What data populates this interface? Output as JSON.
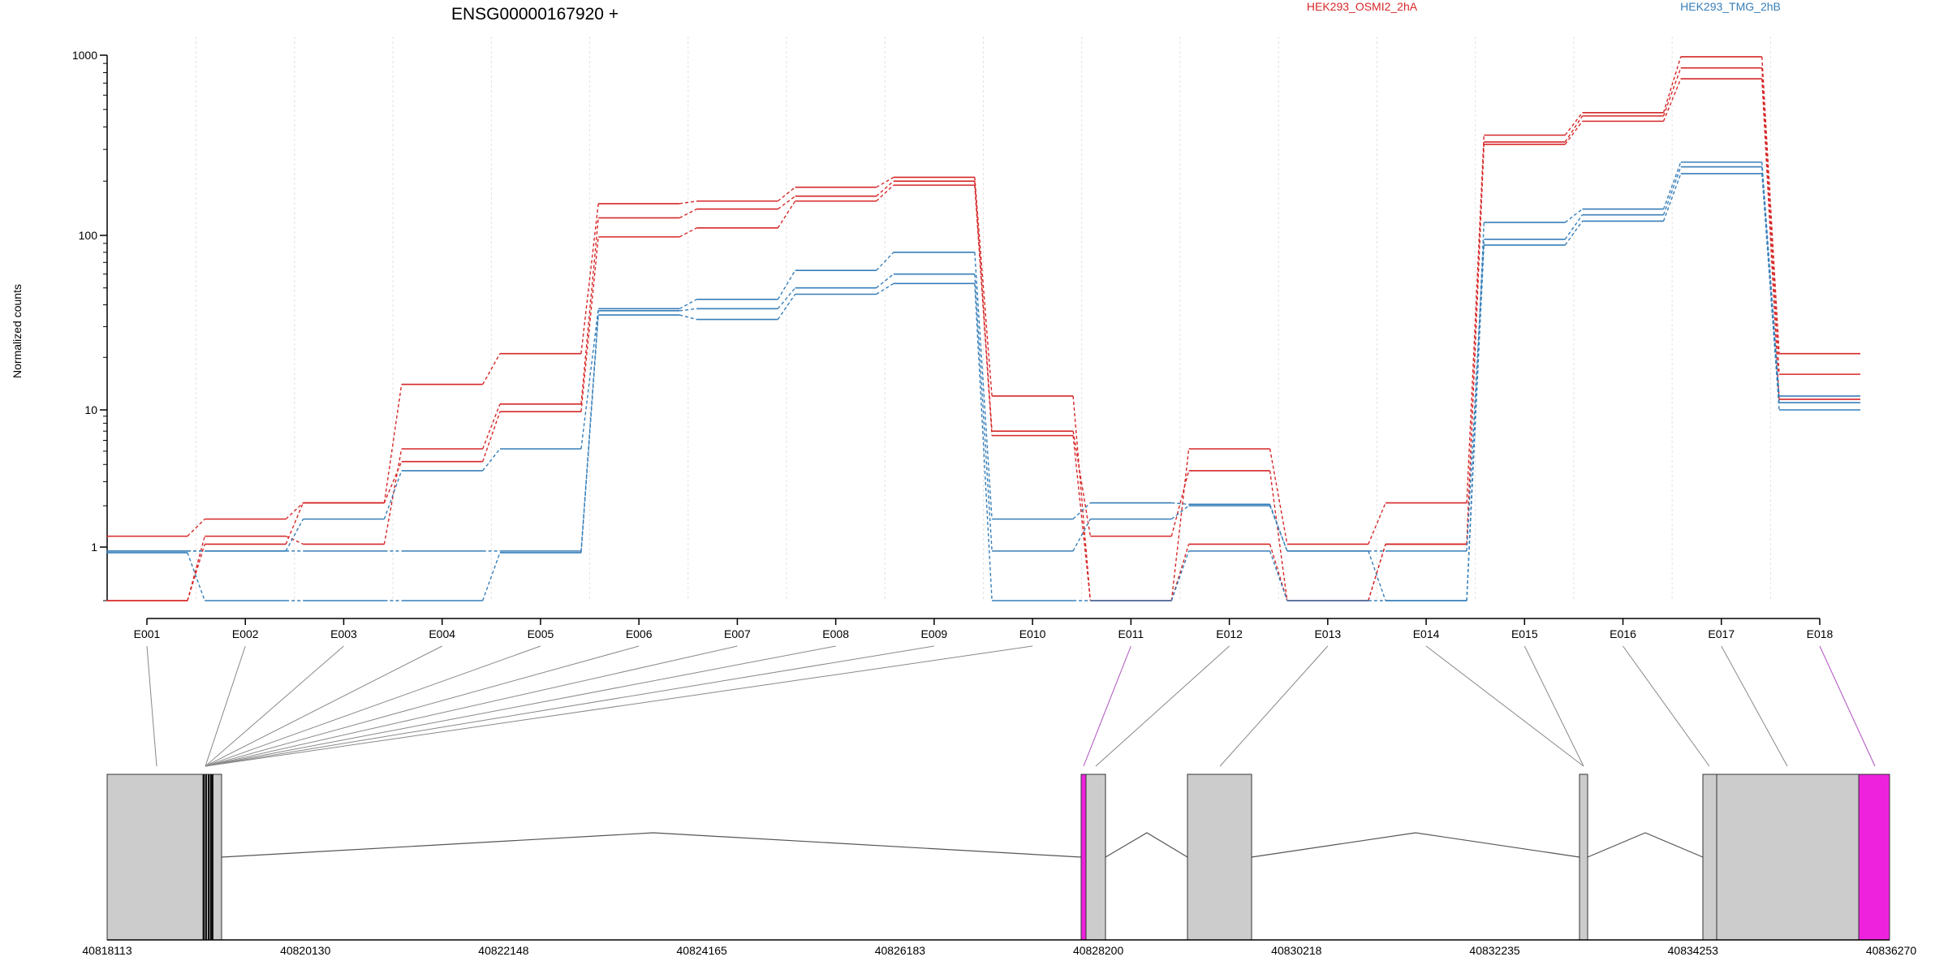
{
  "chart_data": {
    "type": "line",
    "title": "ENSG00000167920 +",
    "ylabel": "Normalized counts",
    "y_scale": "log",
    "ylim": [
      0.5,
      1000
    ],
    "y_ticks": [
      1,
      10,
      100,
      1000
    ],
    "y_tick_labels": [
      "1",
      "10",
      "100",
      "1000"
    ],
    "grid": "vertical dotted lines at exon boundaries",
    "categories": [
      "E001",
      "E002",
      "E003",
      "E004",
      "E005",
      "E006",
      "E007",
      "E008",
      "E009",
      "E010",
      "E011",
      "E012",
      "E013",
      "E014",
      "E015",
      "E016",
      "E017",
      "E018"
    ],
    "legend": [
      {
        "label": "HEK293_OSMI2_2hA",
        "color": "#d62728"
      },
      {
        "label": "HEK293_TMG_2hB",
        "color": "#377eb8"
      }
    ],
    "series": [
      {
        "group": "HEK293_OSMI2_2hA",
        "color": "#d62728",
        "values": [
          1.2,
          1.6,
          2.1,
          14,
          21,
          150,
          155,
          185,
          210,
          12,
          0.5,
          5.2,
          1.05,
          2.1,
          360,
          480,
          980,
          21
        ]
      },
      {
        "group": "HEK293_OSMI2_2hA",
        "color": "#d62728",
        "values": [
          0.5,
          1.2,
          1.05,
          5.2,
          10.8,
          125,
          140,
          165,
          200,
          7,
          1.2,
          3.6,
          0.5,
          1.05,
          330,
          460,
          850,
          16
        ]
      },
      {
        "group": "HEK293_OSMI2_2hA",
        "color": "#d62728",
        "values": [
          0.5,
          1.05,
          2.1,
          4.2,
          9.7,
          98,
          110,
          155,
          190,
          6.5,
          0.5,
          1.05,
          0.5,
          1.05,
          320,
          430,
          740,
          11.5
        ]
      },
      {
        "group": "HEK293_TMG_2hB",
        "color": "#377eb8",
        "values": [
          0.95,
          0.95,
          1.6,
          3.6,
          5.2,
          38,
          43,
          63,
          80,
          1.6,
          2.1,
          2.05,
          0.95,
          0.5,
          118,
          140,
          255,
          12
        ]
      },
      {
        "group": "HEK293_TMG_2hB",
        "color": "#377eb8",
        "values": [
          0.95,
          0.95,
          0.95,
          0.95,
          0.95,
          37,
          38,
          50,
          60,
          0.95,
          1.6,
          2.0,
          0.95,
          0.95,
          95,
          130,
          240,
          11
        ]
      },
      {
        "group": "HEK293_TMG_2hB",
        "color": "#377eb8",
        "values": [
          0.93,
          0.5,
          0.5,
          0.5,
          0.93,
          35,
          33,
          46,
          53,
          0.5,
          0.5,
          0.95,
          0.5,
          0.5,
          88,
          120,
          220,
          10
        ]
      }
    ],
    "gene_model": {
      "genomic_ticks": [
        "40818113",
        "40820130",
        "40822148",
        "40824165",
        "40826183",
        "40828200",
        "40830218",
        "40832235",
        "40834253",
        "40836270"
      ],
      "highlight_color": "#ee22dd",
      "exon_color": "#cccccc"
    }
  }
}
